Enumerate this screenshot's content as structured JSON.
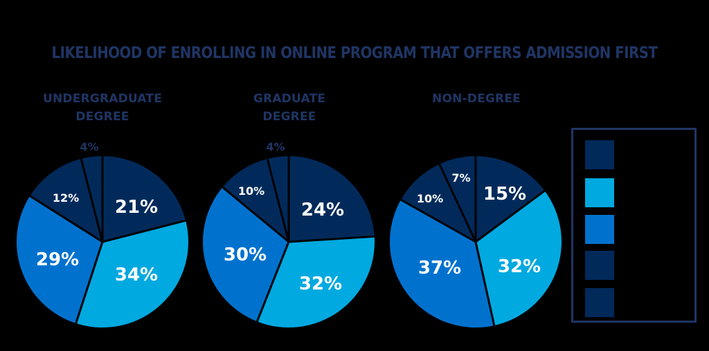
{
  "title": "LIKELIHOOD OF ENROLLING IN ONLINE PROGRAM THAT OFFERS ADMISSION FIRST",
  "colors": {
    "title": "#1f3564",
    "navy": "#012a5b",
    "light_blue": "#00a9e0",
    "medium_blue": "#0072ce",
    "background": "#000000"
  },
  "legend": {
    "items": [
      {
        "color": "#012a5b",
        "label": ""
      },
      {
        "color": "#00a9e0",
        "label": ""
      },
      {
        "color": "#0072ce",
        "label": ""
      },
      {
        "color": "#012a5b",
        "label": ""
      },
      {
        "color": "#012a5b",
        "label": ""
      }
    ]
  },
  "pies": [
    {
      "title_lines": [
        "UNDERGRADUATE",
        "DEGREE"
      ],
      "labels": [
        "21%",
        "34%",
        "29%",
        "12%",
        "4%"
      ]
    },
    {
      "title_lines": [
        "GRADUATE",
        "DEGREE"
      ],
      "labels": [
        "24%",
        "32%",
        "30%",
        "10%",
        "4%"
      ]
    },
    {
      "title_lines": [
        "NON-DEGREE"
      ],
      "labels": [
        "15%",
        "32%",
        "37%",
        "10%",
        "7%"
      ]
    }
  ],
  "chart_data": {
    "type": "pie",
    "title": "LIKELIHOOD OF ENROLLING IN ONLINE PROGRAM THAT OFFERS ADMISSION FIRST",
    "legend_position": "right",
    "legend_labels_visible": false,
    "series_colors": [
      "#012a5b",
      "#00a9e0",
      "#0072ce",
      "#012a5b",
      "#012a5b"
    ],
    "charts": [
      {
        "name": "UNDERGRADUATE DEGREE",
        "values": [
          21,
          34,
          29,
          12,
          4
        ]
      },
      {
        "name": "GRADUATE DEGREE",
        "values": [
          24,
          32,
          30,
          10,
          4
        ]
      },
      {
        "name": "NON-DEGREE",
        "values": [
          15,
          32,
          37,
          10,
          7
        ]
      }
    ]
  }
}
